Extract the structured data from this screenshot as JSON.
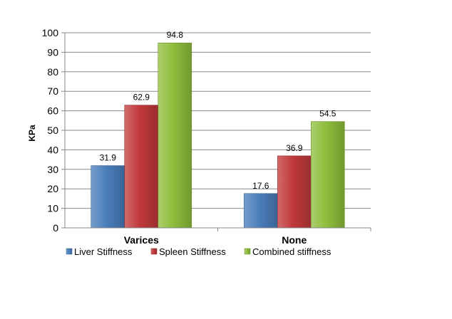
{
  "chart_data": {
    "type": "bar",
    "title": "",
    "xlabel": "",
    "ylabel": "KPa",
    "categories": [
      "Varices",
      "None"
    ],
    "series": [
      {
        "name": "Liver Stiffness",
        "values": [
          31.9,
          17.6
        ],
        "color": "#4a7ebb"
      },
      {
        "name": "Spleen Stiffness",
        "values": [
          62.9,
          36.9
        ],
        "color": "#c0393b"
      },
      {
        "name": "Combined stiffness",
        "values": [
          94.8,
          54.5
        ],
        "color": "#8fbe3c"
      }
    ],
    "ylim": [
      0,
      100
    ],
    "yticks": [
      0,
      10,
      20,
      30,
      40,
      50,
      60,
      70,
      80,
      90,
      100
    ],
    "ytick_labels": [
      "0",
      "10",
      "20",
      "30",
      "40",
      "50",
      "60",
      "70",
      "80",
      "90",
      "100"
    ],
    "data_labels": [
      [
        "31.9",
        "17.6"
      ],
      [
        "62.9",
        "36.9"
      ],
      [
        "94.8",
        "54.5"
      ]
    ],
    "grid": true,
    "legend": "bottom"
  }
}
